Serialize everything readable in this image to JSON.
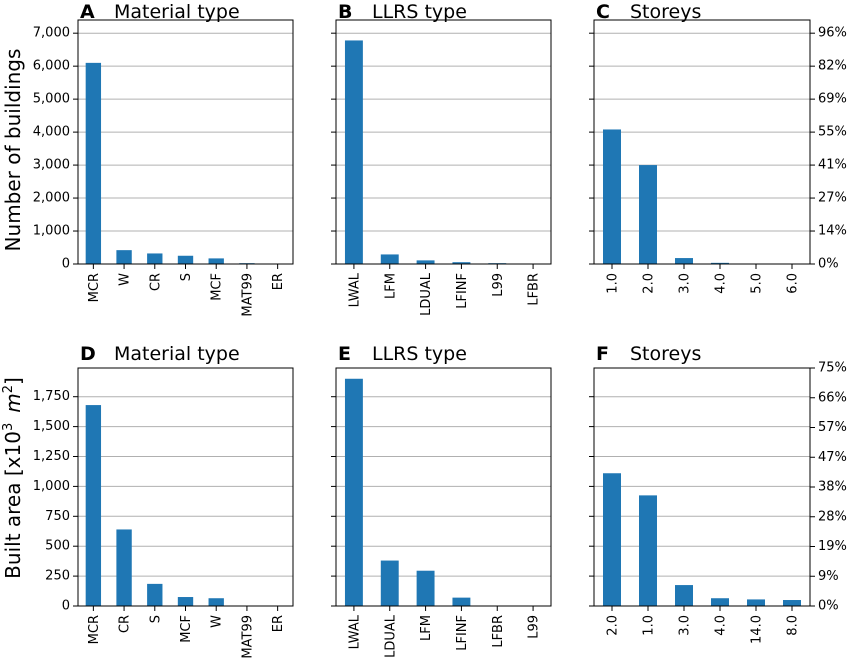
{
  "figure": {
    "ylabel_top": "Number of buildings",
    "ylabel_bottom_prefix": "Built area [x10",
    "ylabel_bottom_exp": "3",
    "ylabel_bottom_unit": "m",
    "ylabel_bottom_unit_exp": "2",
    "ylabel_bottom_suffix": "]"
  },
  "colors": {
    "bar": "#1f77b4",
    "grid": "#b0b0b0",
    "axis": "#000000"
  },
  "chart_data": [
    {
      "id": "A",
      "type": "bar",
      "title": "Material type",
      "categories": [
        "MCR",
        "W",
        "CR",
        "S",
        "MCF",
        "MAT99",
        "ER"
      ],
      "values": [
        6100,
        420,
        320,
        250,
        170,
        25,
        8
      ],
      "ylim": [
        0,
        7400
      ],
      "yticks": [
        0,
        1000,
        2000,
        3000,
        4000,
        5000,
        6000,
        7000
      ],
      "ytick_side": "left",
      "grid": true,
      "row": "top"
    },
    {
      "id": "B",
      "type": "bar",
      "title": "LLRS type",
      "categories": [
        "LWAL",
        "LFM",
        "LDUAL",
        "LFINF",
        "L99",
        "LFBR"
      ],
      "values": [
        6780,
        290,
        110,
        55,
        25,
        5
      ],
      "ylim": [
        0,
        7400
      ],
      "yticks": [
        0,
        1000,
        2000,
        3000,
        4000,
        5000,
        6000,
        7000
      ],
      "ytick_side": "none",
      "grid": true,
      "row": "top"
    },
    {
      "id": "C",
      "type": "bar",
      "title": "Storeys",
      "categories": [
        "1.0",
        "2.0",
        "3.0",
        "4.0",
        "5.0",
        "6.0"
      ],
      "values": [
        4080,
        3000,
        180,
        35,
        8,
        3
      ],
      "ylim": [
        0,
        7400
      ],
      "yticks": [
        0,
        1000,
        2000,
        3000,
        4000,
        5000,
        6000,
        7000
      ],
      "ytick_side": "right",
      "right_ticks": [
        "0%",
        "14%",
        "27%",
        "41%",
        "55%",
        "69%",
        "82%",
        "96%"
      ],
      "grid": true,
      "row": "top"
    },
    {
      "id": "D",
      "type": "bar",
      "title": "Material type",
      "categories": [
        "MCR",
        "CR",
        "S",
        "MCF",
        "W",
        "MAT99",
        "ER"
      ],
      "values": [
        1680,
        640,
        185,
        75,
        65,
        4,
        2
      ],
      "ylim": [
        0,
        1990
      ],
      "yticks": [
        0,
        250,
        500,
        750,
        1000,
        1250,
        1500,
        1750
      ],
      "ytick_side": "left",
      "grid": true,
      "row": "bottom"
    },
    {
      "id": "E",
      "type": "bar",
      "title": "LLRS type",
      "categories": [
        "LWAL",
        "LDUAL",
        "LFM",
        "LFINF",
        "LFBR",
        "L99"
      ],
      "values": [
        1900,
        380,
        295,
        70,
        3,
        2
      ],
      "ylim": [
        0,
        1990
      ],
      "yticks": [
        0,
        250,
        500,
        750,
        1000,
        1250,
        1500,
        1750
      ],
      "ytick_side": "none",
      "grid": true,
      "row": "bottom"
    },
    {
      "id": "F",
      "type": "bar",
      "title": "Storeys",
      "categories": [
        "2.0",
        "1.0",
        "3.0",
        "4.0",
        "14.0",
        "8.0"
      ],
      "values": [
        1110,
        925,
        175,
        65,
        55,
        50
      ],
      "ylim": [
        0,
        1990
      ],
      "yticks": [
        0,
        250,
        500,
        750,
        1000,
        1250,
        1500,
        1750
      ],
      "ytick_side": "right",
      "right_ticks": [
        "0%",
        "9%",
        "19%",
        "28%",
        "38%",
        "47%",
        "57%",
        "66%",
        "75%"
      ],
      "right_ticks_max": 75,
      "grid": true,
      "row": "bottom"
    }
  ]
}
